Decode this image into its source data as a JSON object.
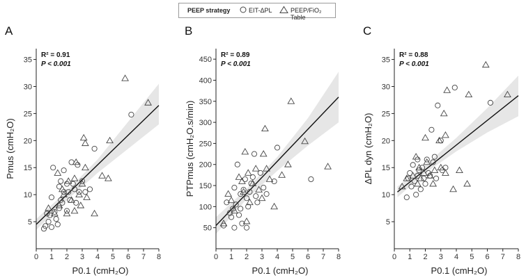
{
  "legend": {
    "title": "PEEP strategy",
    "entries": [
      {
        "label": "EIT-ΔPL",
        "symbol": "circle-icon"
      },
      {
        "label": "PEEP/FiO₂ Table",
        "symbol": "triangle-icon"
      }
    ]
  },
  "colors": {
    "band": "#e6e6e6",
    "line": "#111111",
    "axis": "#222222",
    "marker": "#444444"
  },
  "chart_data": [
    {
      "type": "scatter",
      "panel_label": "A",
      "xlabel": "P0.1 (cmH₂O)",
      "ylabel": "Pmus (cmH₂O)",
      "xlim": [
        0,
        8
      ],
      "ylim": [
        0,
        37
      ],
      "xticks": [
        0,
        1,
        2,
        3,
        4,
        5,
        6,
        7,
        8
      ],
      "yticks": [
        5,
        10,
        15,
        20,
        25,
        30,
        35
      ],
      "stats": {
        "r2": "R² = 0.91",
        "p": "P < 0.001"
      },
      "fit": {
        "x0": 0,
        "y0": 4.5,
        "x1": 8,
        "y1": 26.5
      },
      "band": {
        "lower": [
          [
            0,
            3.5
          ],
          [
            2,
            9
          ],
          [
            4,
            14
          ],
          [
            6,
            18.5
          ],
          [
            8,
            23
          ]
        ],
        "upper": [
          [
            0,
            5.5
          ],
          [
            2,
            10.7
          ],
          [
            4,
            16.5
          ],
          [
            6,
            23.5
          ],
          [
            8,
            30.5
          ]
        ]
      },
      "series": [
        {
          "name": "EIT-ΔPL",
          "marker": "circle",
          "points": [
            [
              0.5,
              3.7
            ],
            [
              0.6,
              4.2
            ],
            [
              0.7,
              6.5
            ],
            [
              0.8,
              5
            ],
            [
              0.9,
              6.2
            ],
            [
              1,
              4
            ],
            [
              1,
              9.5
            ],
            [
              1.1,
              15
            ],
            [
              1.2,
              6.8
            ],
            [
              1.3,
              5.5
            ],
            [
              1.4,
              4.5
            ],
            [
              1.5,
              7.5
            ],
            [
              1.5,
              11.5
            ],
            [
              1.6,
              12.5
            ],
            [
              1.6,
              9
            ],
            [
              1.7,
              8.5
            ],
            [
              1.8,
              14.5
            ],
            [
              1.8,
              10.5
            ],
            [
              2,
              7
            ],
            [
              2,
              12
            ],
            [
              2.1,
              10.5
            ],
            [
              2.2,
              9
            ],
            [
              2.3,
              16
            ],
            [
              2.4,
              12
            ],
            [
              2.5,
              11
            ],
            [
              2.6,
              8.5
            ],
            [
              2.7,
              15.5
            ],
            [
              2.8,
              10.5
            ],
            [
              3,
              12.5
            ],
            [
              3.2,
              10.5
            ],
            [
              3.5,
              11
            ],
            [
              3.8,
              18.5
            ],
            [
              6.2,
              24.8
            ]
          ]
        },
        {
          "name": "PEEP/FiO₂ Table",
          "marker": "triangle",
          "points": [
            [
              0.8,
              7.5
            ],
            [
              1.2,
              6.5
            ],
            [
              1.4,
              14
            ],
            [
              1.5,
              8
            ],
            [
              1.7,
              11
            ],
            [
              1.8,
              10
            ],
            [
              2,
              6.5
            ],
            [
              2.1,
              12.5
            ],
            [
              2.3,
              9
            ],
            [
              2.5,
              7
            ],
            [
              2.5,
              13
            ],
            [
              2.6,
              16
            ],
            [
              2.8,
              10
            ],
            [
              2.9,
              8
            ],
            [
              3,
              12
            ],
            [
              3.1,
              20.5
            ],
            [
              3.2,
              19.5
            ],
            [
              3.2,
              15
            ],
            [
              3.3,
              9.5
            ],
            [
              3.8,
              6.5
            ],
            [
              4.3,
              13.5
            ],
            [
              4.7,
              13
            ],
            [
              4.8,
              20
            ],
            [
              5.8,
              31.5
            ],
            [
              7.3,
              27
            ]
          ]
        }
      ]
    },
    {
      "type": "scatter",
      "panel_label": "B",
      "xlabel": "P0.1 (cmH₂O)",
      "ylabel": "PTPmus (cmH₂O.s/min)",
      "xlim": [
        0,
        8
      ],
      "ylim": [
        0,
        475
      ],
      "xticks": [
        0,
        1,
        2,
        3,
        4,
        5,
        6,
        7,
        8
      ],
      "yticks": [
        50,
        100,
        150,
        200,
        250,
        300,
        350,
        400,
        450
      ],
      "stats": {
        "r2": "R² = 0.89",
        "p": "P < 0.001"
      },
      "fit": {
        "x0": 0,
        "y0": 55,
        "x1": 8,
        "y1": 360
      },
      "band": {
        "lower": [
          [
            0,
            35
          ],
          [
            2,
            118
          ],
          [
            4,
            185
          ],
          [
            6,
            245
          ],
          [
            8,
            300
          ]
        ],
        "upper": [
          [
            0,
            75
          ],
          [
            2,
            142
          ],
          [
            4,
            218
          ],
          [
            6,
            310
          ],
          [
            8,
            420
          ]
        ]
      },
      "series": [
        {
          "name": "EIT-ΔPL",
          "marker": "circle",
          "points": [
            [
              0.5,
              55
            ],
            [
              0.7,
              110
            ],
            [
              0.9,
              85
            ],
            [
              1,
              75
            ],
            [
              1.1,
              95
            ],
            [
              1.2,
              145
            ],
            [
              1.2,
              50
            ],
            [
              1.3,
              105
            ],
            [
              1.4,
              200
            ],
            [
              1.5,
              80
            ],
            [
              1.6,
              130
            ],
            [
              1.6,
              95
            ],
            [
              1.7,
              60
            ],
            [
              1.8,
              140
            ],
            [
              1.9,
              165
            ],
            [
              2,
              50
            ],
            [
              2,
              120
            ],
            [
              2.1,
              100
            ],
            [
              2.2,
              135
            ],
            [
              2.3,
              155
            ],
            [
              2.4,
              170
            ],
            [
              2.5,
              225
            ],
            [
              2.6,
              125
            ],
            [
              2.7,
              110
            ],
            [
              2.9,
              180
            ],
            [
              3.1,
              145
            ],
            [
              3.3,
              130
            ],
            [
              3.8,
              160
            ],
            [
              4,
              240
            ],
            [
              6.2,
              165
            ]
          ]
        },
        {
          "name": "PEEP/FiO₂ Table",
          "marker": "triangle",
          "points": [
            [
              0.5,
              60
            ],
            [
              0.8,
              130
            ],
            [
              1,
              115
            ],
            [
              1.2,
              90
            ],
            [
              1.5,
              170
            ],
            [
              1.7,
              160
            ],
            [
              1.8,
              135
            ],
            [
              1.9,
              230
            ],
            [
              2,
              65
            ],
            [
              2.1,
              180
            ],
            [
              2.2,
              110
            ],
            [
              2.4,
              155
            ],
            [
              2.6,
              190
            ],
            [
              2.8,
              140
            ],
            [
              3,
              120
            ],
            [
              3.1,
              225
            ],
            [
              3.2,
              285
            ],
            [
              3.3,
              190
            ],
            [
              3.5,
              165
            ],
            [
              3.8,
              100
            ],
            [
              4.3,
              175
            ],
            [
              4.7,
              200
            ],
            [
              4.9,
              350
            ],
            [
              5.8,
              255
            ],
            [
              7.3,
              195
            ]
          ]
        }
      ]
    },
    {
      "type": "scatter",
      "panel_label": "C",
      "xlabel": "P0.1 (cmH₂O)",
      "ylabel": "ΔPL dyn (cmH₂O)",
      "xlim": [
        0,
        8
      ],
      "ylim": [
        0,
        37
      ],
      "xticks": [
        0,
        1,
        2,
        3,
        4,
        5,
        6,
        7,
        8
      ],
      "yticks": [
        5,
        10,
        15,
        20,
        25,
        30,
        35
      ],
      "stats": {
        "r2": "R² = 0.88",
        "p": "P < 0.001"
      },
      "fit": {
        "x0": 0.2,
        "y0": 10.5,
        "x1": 8,
        "y1": 28.3
      },
      "band": {
        "lower": [
          [
            0.2,
            9.5
          ],
          [
            2,
            14
          ],
          [
            4,
            18
          ],
          [
            6,
            21.5
          ],
          [
            8,
            24.5
          ]
        ],
        "upper": [
          [
            0.2,
            11.5
          ],
          [
            2,
            15.5
          ],
          [
            4,
            20.5
          ],
          [
            6,
            26
          ],
          [
            8,
            32
          ]
        ]
      },
      "series": [
        {
          "name": "EIT-ΔPL",
          "marker": "circle",
          "points": [
            [
              0.8,
              9.5
            ],
            [
              0.9,
              13
            ],
            [
              1,
              14
            ],
            [
              1.1,
              11.5
            ],
            [
              1.2,
              15.5
            ],
            [
              1.3,
              12.5
            ],
            [
              1.4,
              10
            ],
            [
              1.5,
              13.5
            ],
            [
              1.5,
              16.5
            ],
            [
              1.6,
              14.5
            ],
            [
              1.7,
              11
            ],
            [
              1.8,
              15
            ],
            [
              1.9,
              13
            ],
            [
              2,
              12
            ],
            [
              2.1,
              16.5
            ],
            [
              2.2,
              14
            ],
            [
              2.3,
              13.5
            ],
            [
              2.4,
              22
            ],
            [
              2.5,
              16
            ],
            [
              2.6,
              17
            ],
            [
              2.7,
              13
            ],
            [
              2.8,
              26.5
            ],
            [
              3,
              20
            ],
            [
              3.1,
              14.5
            ],
            [
              3.3,
              15
            ],
            [
              3.9,
              29.8
            ],
            [
              6.2,
              27
            ]
          ]
        },
        {
          "name": "PEEP/FiO₂ Table",
          "marker": "triangle",
          "points": [
            [
              0.5,
              11.5
            ],
            [
              0.8,
              13
            ],
            [
              1.2,
              13.5
            ],
            [
              1.4,
              17
            ],
            [
              1.5,
              12
            ],
            [
              1.6,
              15
            ],
            [
              1.7,
              13
            ],
            [
              1.9,
              14
            ],
            [
              2,
              20.5
            ],
            [
              2.1,
              16
            ],
            [
              2.3,
              13.5
            ],
            [
              2.5,
              12
            ],
            [
              2.6,
              14.5
            ],
            [
              2.9,
              20
            ],
            [
              3,
              15
            ],
            [
              3.2,
              25
            ],
            [
              3.3,
              21
            ],
            [
              3.3,
              14
            ],
            [
              3.4,
              29.3
            ],
            [
              3.8,
              11
            ],
            [
              4.2,
              14.5
            ],
            [
              4.7,
              12
            ],
            [
              4.8,
              28.5
            ],
            [
              5.9,
              34
            ],
            [
              7.3,
              28.5
            ]
          ]
        }
      ]
    }
  ]
}
